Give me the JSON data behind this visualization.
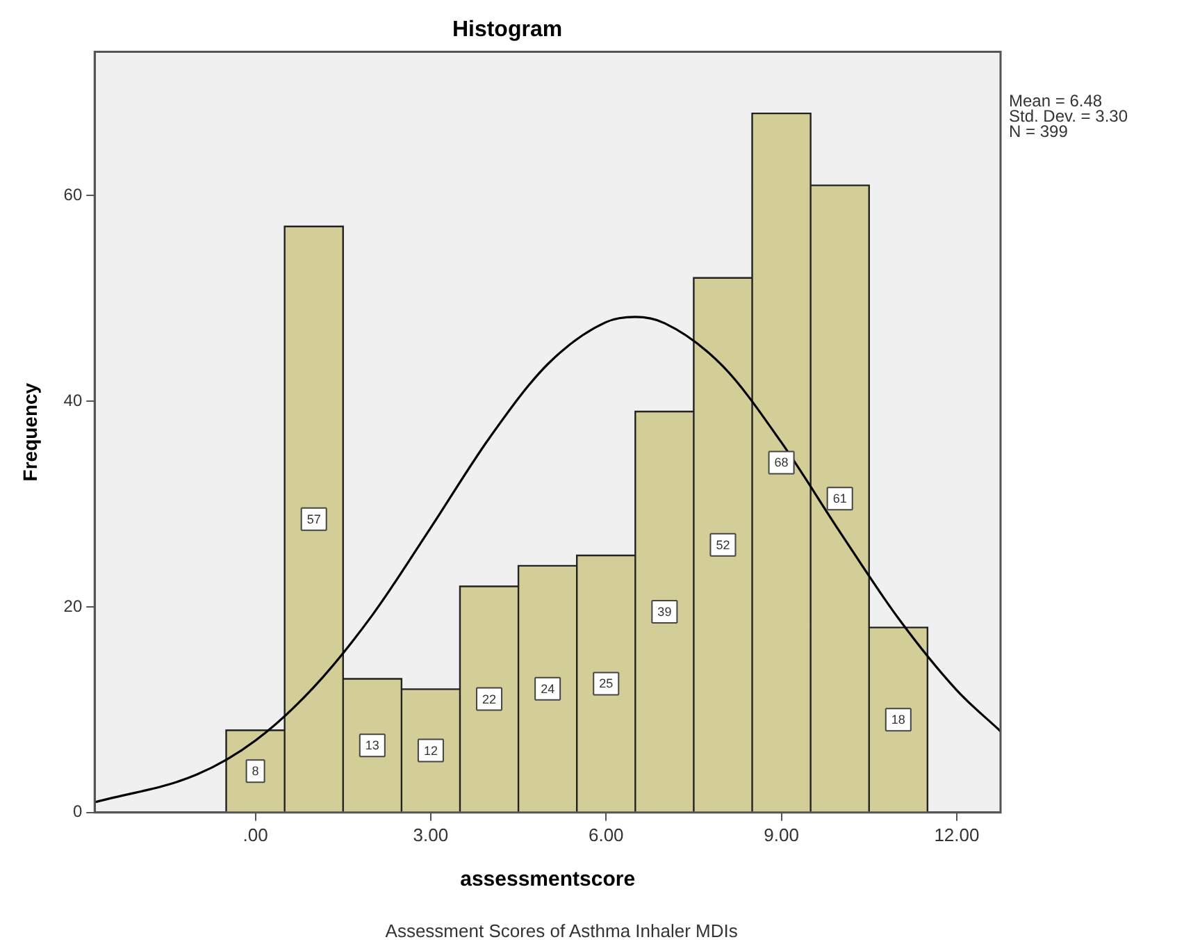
{
  "chart_data": {
    "type": "histogram",
    "title": "Histogram",
    "xlabel": "assessmentscore",
    "ylabel": "Frequency",
    "bins": [
      -0.5,
      0.5,
      1.5,
      2.5,
      3.5,
      4.5,
      5.5,
      6.5,
      7.5,
      8.5,
      9.5,
      10.5,
      11.5
    ],
    "values": [
      8,
      57,
      13,
      12,
      22,
      24,
      25,
      39,
      52,
      68,
      61,
      18
    ],
    "color": "#d3ce98",
    "series": [
      {
        "type": "line",
        "color": "#000000",
        "x": [
          -2.75,
          -1,
          0,
          1,
          2,
          3,
          4,
          5,
          6,
          6.5,
          7,
          8,
          9,
          10,
          11,
          12,
          12.75
        ],
        "values": [
          1.0,
          3.7,
          7.0,
          12.2,
          19.2,
          27.7,
          36.4,
          43.6,
          47.7,
          48.2,
          47.6,
          43.4,
          36.0,
          27.3,
          18.9,
          11.9,
          7.9
        ]
      }
    ],
    "xlim": [
      -2.75,
      12.75
    ],
    "xticks": [
      {
        "value": 0,
        "label": ".00"
      },
      {
        "value": 3,
        "label": "3.00"
      },
      {
        "value": 6,
        "label": "6.00"
      },
      {
        "value": 9,
        "label": "9.00"
      },
      {
        "value": 12,
        "label": "12.00"
      }
    ],
    "ylim": [
      0,
      74
    ],
    "yticks": [
      0,
      20,
      40,
      60
    ],
    "grid": false,
    "legend": false,
    "value_labels": [
      "8",
      "57",
      "13",
      "12",
      "22",
      "24",
      "25",
      "39",
      "52",
      "68",
      "61",
      "18"
    ],
    "annotations": [
      "Mean = 6.48",
      "Std. Dev. = 3.30",
      "N = 399",
      "Assessment Scores of Asthma Inhaler MDIs"
    ]
  }
}
